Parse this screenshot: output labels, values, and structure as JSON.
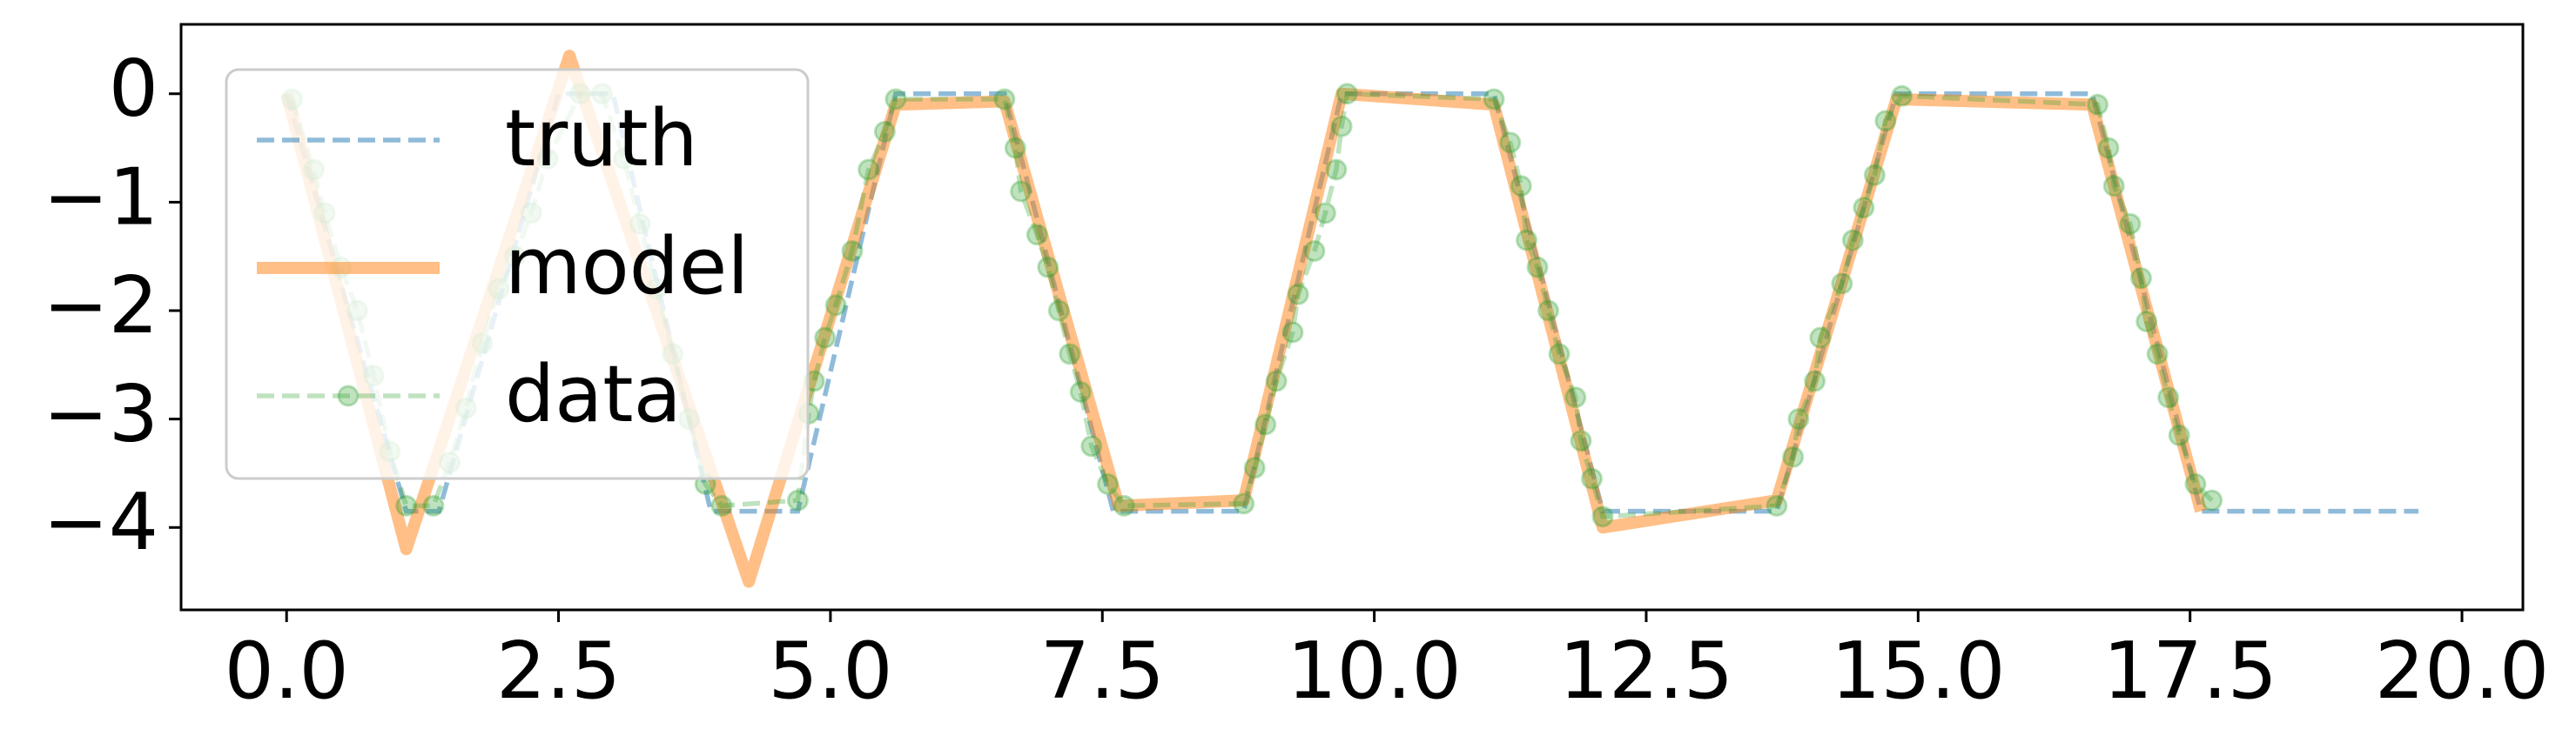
{
  "chart_data": {
    "type": "line",
    "xlim": [
      -0.97,
      20.56
    ],
    "ylim": [
      -4.76,
      0.64
    ],
    "xticks": [
      {
        "value": 0,
        "label": "0.0"
      },
      2.5,
      {
        "value": 5,
        "label": "5.0"
      },
      7.5,
      {
        "value": 10,
        "label": "10.0"
      },
      12.5,
      {
        "value": 15,
        "label": "15.0"
      },
      17.5,
      {
        "value": 20,
        "label": "20.0"
      }
    ],
    "yticks": [
      0,
      {
        "value": -1,
        "label": "−1"
      },
      {
        "value": -2,
        "label": "−2"
      },
      {
        "value": -3,
        "label": "−3"
      },
      {
        "value": -4,
        "label": "−4"
      }
    ],
    "legend": "upper left",
    "series": [
      {
        "name": "truth",
        "color": "#1f77b4",
        "style": "dashed",
        "x": [
          0,
          1.1,
          1.4,
          2.5,
          3.0,
          3.9,
          4.7,
          5.6,
          6.6,
          7.6,
          8.8,
          9.7,
          11.1,
          12.1,
          13.7,
          14.8,
          16.6,
          17.6,
          19.6
        ],
        "values": [
          0,
          -3.85,
          -3.85,
          0,
          0,
          -3.85,
          -3.85,
          0,
          0,
          -3.85,
          -3.85,
          0,
          0,
          -3.85,
          -3.85,
          0,
          0,
          -3.85,
          -3.85
        ]
      },
      {
        "name": "model",
        "color": "#ff7f0e",
        "style": "thick",
        "x": [
          0,
          1.1,
          2.6,
          4.25,
          5.6,
          6.6,
          7.65,
          8.8,
          9.7,
          11.1,
          12.1,
          13.7,
          14.8,
          16.6,
          17.6
        ],
        "values": [
          0,
          -4.2,
          0.35,
          -4.5,
          -0.1,
          -0.07,
          -3.8,
          -3.75,
          0,
          -0.1,
          -4.0,
          -3.75,
          -0.05,
          -0.1,
          -3.85
        ]
      },
      {
        "name": "data",
        "color": "#2ca02c",
        "style": "markers",
        "x": [
          0.05,
          0.25,
          0.35,
          0.5,
          0.65,
          0.8,
          0.95,
          1.1,
          1.35,
          1.5,
          1.65,
          1.8,
          1.95,
          2.1,
          2.25,
          2.4,
          2.7,
          2.9,
          3.1,
          3.25,
          3.4,
          3.55,
          3.7,
          3.85,
          4.0,
          4.7,
          4.8,
          4.85,
          4.95,
          5.05,
          5.2,
          5.35,
          5.5,
          5.6,
          6.6,
          6.7,
          6.75,
          6.9,
          7.0,
          7.1,
          7.2,
          7.3,
          7.4,
          7.55,
          7.7,
          8.8,
          8.9,
          9.0,
          9.1,
          9.25,
          9.3,
          9.45,
          9.55,
          9.65,
          9.7,
          9.75,
          11.1,
          11.25,
          11.35,
          11.4,
          11.5,
          11.6,
          11.7,
          11.85,
          11.9,
          12.0,
          12.1,
          13.7,
          13.85,
          13.9,
          14.05,
          14.1,
          14.3,
          14.4,
          14.5,
          14.6,
          14.7,
          14.85,
          16.65,
          16.75,
          16.8,
          16.95,
          17.05,
          17.1,
          17.2,
          17.3,
          17.4,
          17.55,
          17.7
        ],
        "values": [
          -0.05,
          -0.7,
          -1.1,
          -1.6,
          -2.0,
          -2.6,
          -3.3,
          -3.8,
          -3.8,
          -3.4,
          -2.9,
          -2.3,
          -1.8,
          -1.5,
          -1.1,
          -0.6,
          0,
          0,
          -0.6,
          -1.2,
          -1.8,
          -2.4,
          -3.0,
          -3.6,
          -3.8,
          -3.75,
          -2.95,
          -2.65,
          -2.25,
          -1.95,
          -1.45,
          -0.7,
          -0.35,
          -0.05,
          -0.05,
          -0.5,
          -0.9,
          -1.3,
          -1.6,
          -2.0,
          -2.4,
          -2.75,
          -3.25,
          -3.6,
          -3.8,
          -3.78,
          -3.45,
          -3.05,
          -2.65,
          -2.2,
          -1.85,
          -1.45,
          -1.1,
          -0.7,
          -0.3,
          0,
          -0.05,
          -0.45,
          -0.85,
          -1.35,
          -1.6,
          -2.0,
          -2.4,
          -2.8,
          -3.2,
          -3.55,
          -3.9,
          -3.8,
          -3.35,
          -3.0,
          -2.65,
          -2.25,
          -1.75,
          -1.35,
          -1.05,
          -0.75,
          -0.25,
          -0.02,
          -0.1,
          -0.5,
          -0.85,
          -1.2,
          -1.7,
          -2.1,
          -2.4,
          -2.8,
          -3.15,
          -3.6,
          -3.75
        ]
      }
    ]
  }
}
